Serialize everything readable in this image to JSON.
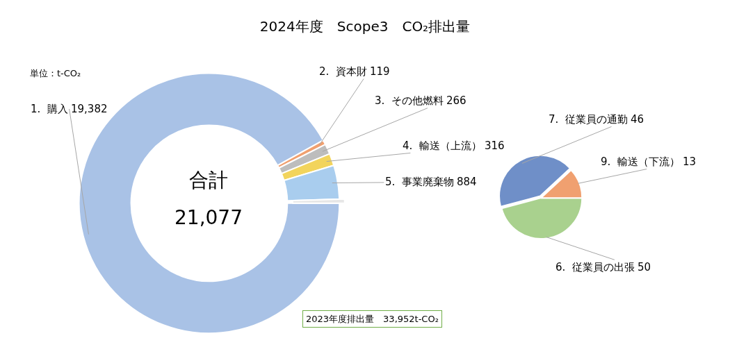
{
  "chart_data": [
    {
      "type": "donut",
      "title": "2024年度　Scope3　CO₂排出量",
      "categories": [
        "1.  購入",
        "2.  資本財",
        "3.  その他燃料",
        "4.  輸送（上流）",
        "5.  事業廃棄物",
        null
      ],
      "values": [
        19382,
        119,
        266,
        316,
        884,
        109
      ],
      "colors": [
        "#a9c2e6",
        "#f0a070",
        "#bdbdbd",
        "#f2d45c",
        "#a9cdee",
        "#e6e6e6"
      ],
      "value_labels": [
        "19,382",
        "119",
        "266",
        "316",
        "884",
        null
      ],
      "annotations": [
        "単位：t-CO₂",
        "合計",
        "21,077",
        "2023年度排出量　33,952t-CO₂"
      ]
    },
    {
      "type": "pie",
      "categories": [
        "6.  従業員の出張",
        "7.  従業員の通勤",
        "9.  輸送（下流）"
      ],
      "values": [
        50,
        46,
        13
      ],
      "colors": [
        "#a9d18e",
        "#6f8fc8",
        "#f0a070"
      ],
      "data_labels": true
    }
  ]
}
